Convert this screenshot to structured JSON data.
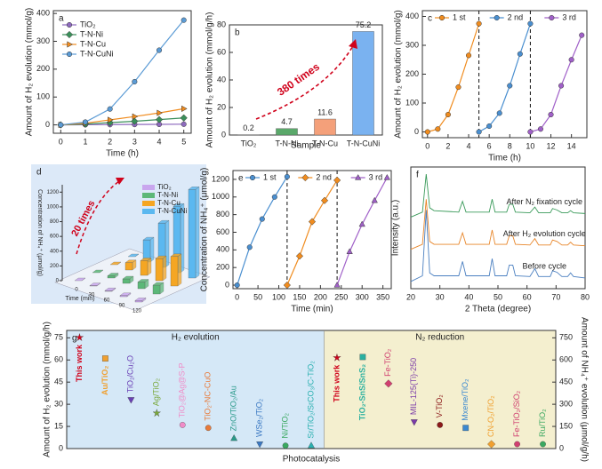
{
  "chart_data": [
    {
      "panel": "a",
      "type": "line",
      "xlabel": "Time (h)",
      "ylabel": "Amount of H₂ evolution (mmol/g)",
      "xlim": [
        -0.3,
        5.3
      ],
      "xticks": [
        0,
        1,
        2,
        3,
        4,
        5
      ],
      "ylim": [
        -30,
        410
      ],
      "yticks": [
        0,
        100,
        200,
        300,
        400
      ],
      "legend": "upper left",
      "series": [
        {
          "name": "TiO₂",
          "color": "#8e6bbf",
          "marker": "circle",
          "x": [
            0,
            1,
            2,
            3,
            4,
            5
          ],
          "values": [
            0,
            0.5,
            1,
            1.5,
            2,
            2.5
          ]
        },
        {
          "name": "T-N-Ni",
          "color": "#3a8f5a",
          "marker": "diamond",
          "x": [
            0,
            1,
            2,
            3,
            4,
            5
          ],
          "values": [
            0,
            3,
            8,
            13,
            19,
            25
          ]
        },
        {
          "name": "T-N-Cu",
          "color": "#f08c1f",
          "marker": "triangle-right",
          "x": [
            0,
            1,
            2,
            3,
            4,
            5
          ],
          "values": [
            0,
            6,
            18,
            30,
            43,
            58
          ]
        },
        {
          "name": "T-N-CuNi",
          "color": "#5b9bd5",
          "marker": "circle",
          "x": [
            0,
            1,
            2,
            3,
            4,
            5
          ],
          "values": [
            0,
            10,
            57,
            155,
            268,
            376
          ]
        }
      ]
    },
    {
      "panel": "b",
      "type": "bar",
      "xlabel": "Sample",
      "ylabel": "Amount of H₂ evolution (mmol/g/h)",
      "categories": [
        "TiO₂",
        "T-N-Ni",
        "T-N-Cu",
        "T-N-CuNi"
      ],
      "values": [
        0.2,
        4.7,
        11.6,
        75.2
      ],
      "colors": [
        "#b0b0b0",
        "#5aa86a",
        "#f4a07a",
        "#7ab2f0"
      ],
      "ylim": [
        0,
        80
      ],
      "yticks": [
        0,
        20,
        40,
        60,
        80
      ],
      "annotation": "380 times"
    },
    {
      "panel": "c",
      "type": "line",
      "xlabel": "Time (h)",
      "ylabel": "Amount of H₂ evolution (mmol/g)",
      "xlim": [
        -0.5,
        15.5
      ],
      "xticks": [
        0,
        2,
        4,
        6,
        8,
        10,
        12,
        14
      ],
      "ylim": [
        -20,
        420
      ],
      "yticks": [
        0,
        100,
        200,
        300,
        400
      ],
      "legend": "upper center",
      "dividers": [
        5,
        10
      ],
      "series": [
        {
          "name": "1 st",
          "color": "#f08c1f",
          "marker": "circle",
          "x": [
            0,
            1,
            2,
            3,
            4,
            5
          ],
          "values": [
            0,
            10,
            60,
            155,
            265,
            375
          ]
        },
        {
          "name": "2 nd",
          "color": "#4a8fd0",
          "marker": "circle",
          "x": [
            5,
            6,
            7,
            8,
            9,
            10
          ],
          "values": [
            0,
            20,
            65,
            160,
            270,
            375
          ]
        },
        {
          "name": "3 rd",
          "color": "#a060c8",
          "marker": "circle",
          "x": [
            10,
            11,
            12,
            13,
            14,
            15
          ],
          "values": [
            0,
            10,
            60,
            160,
            250,
            335
          ]
        }
      ]
    },
    {
      "panel": "d",
      "type": "bar3d",
      "xlabel": "Time (min)",
      "zlabel": "Concentration of NH₄⁺ (μmol/g)",
      "annotation": "20 times",
      "categories": [
        "0",
        "30",
        "60",
        "90",
        "120"
      ],
      "zlim": [
        0,
        1300
      ],
      "zticks": [
        0,
        200,
        400,
        600,
        800,
        1000,
        1200
      ],
      "legend": "upper right",
      "series": [
        {
          "name": "TiO₂",
          "color": "#c9a6ee",
          "values": [
            0,
            5,
            10,
            15,
            20
          ]
        },
        {
          "name": "T-N-Ni",
          "color": "#5cb878",
          "values": [
            0,
            30,
            60,
            90,
            120
          ]
        },
        {
          "name": "T-N-Cu",
          "color": "#f5a623",
          "values": [
            0,
            100,
            200,
            300,
            400
          ]
        },
        {
          "name": "T-N-CuNi",
          "color": "#5bb8f0",
          "values": [
            0,
            300,
            600,
            900,
            1200
          ]
        }
      ]
    },
    {
      "panel": "e",
      "type": "line",
      "xlabel": "Time (min)",
      "ylabel": "Concentration of NH₄⁺ (μmol/g)",
      "xlim": [
        -10,
        370
      ],
      "xticks": [
        0,
        50,
        100,
        150,
        200,
        250,
        300,
        350
      ],
      "ylim": [
        -40,
        1300
      ],
      "yticks": [
        0,
        200,
        400,
        600,
        800,
        1000,
        1200
      ],
      "legend": "upper center",
      "dividers": [
        120,
        240
      ],
      "series": [
        {
          "name": "1 st",
          "color": "#4a8fd0",
          "marker": "circle",
          "x": [
            0,
            30,
            60,
            90,
            120
          ],
          "values": [
            0,
            430,
            750,
            1000,
            1230
          ]
        },
        {
          "name": "2 nd",
          "color": "#f08c1f",
          "marker": "diamond",
          "x": [
            120,
            150,
            180,
            210,
            240
          ],
          "values": [
            0,
            330,
            720,
            960,
            1190
          ]
        },
        {
          "name": "3 rd",
          "color": "#a060c8",
          "marker": "triangle",
          "x": [
            240,
            270,
            300,
            330,
            360
          ],
          "values": [
            0,
            380,
            690,
            960,
            1220
          ]
        }
      ]
    },
    {
      "panel": "f",
      "type": "xrd",
      "xlabel": "2 Theta (degree)",
      "ylabel": "Intensity (a.u.)",
      "xlim": [
        20,
        80
      ],
      "xticks": [
        20,
        30,
        40,
        50,
        60,
        70,
        80
      ],
      "ylim": [
        0,
        17
      ],
      "x": [
        20,
        24,
        25.3,
        26.5,
        28,
        36.5,
        37.8,
        39,
        47,
        48,
        49,
        53,
        53.9,
        55.1,
        56,
        61,
        62.7,
        64,
        68,
        68.8,
        70.3,
        72,
        74,
        75,
        76,
        80
      ],
      "series": [
        {
          "name": "Before cycle",
          "color": "#4a7fc0",
          "values": [
            1,
            1.8,
            11,
            2.2,
            1.8,
            1.8,
            3.8,
            1.8,
            1.8,
            4.2,
            1.8,
            1.8,
            3.3,
            3.3,
            1.8,
            1.7,
            2.8,
            1.7,
            1.7,
            2.5,
            2.3,
            1.7,
            1.7,
            2.2,
            1.7,
            1.5
          ]
        },
        {
          "name": "After H₂ evolution cycle",
          "color": "#e8862a",
          "values": [
            5.5,
            6.2,
            12.5,
            6.6,
            6.2,
            6.2,
            7.8,
            6.2,
            6.2,
            8.2,
            6.2,
            6.2,
            7.4,
            7.4,
            6.2,
            6.1,
            7,
            6.1,
            6.1,
            6.8,
            6.6,
            6.1,
            6.1,
            6.5,
            6.1,
            6
          ]
        },
        {
          "name": "After N₂ fixation cycle",
          "color": "#3a9a5a",
          "values": [
            10,
            10.7,
            16,
            11.3,
            10.9,
            10.7,
            12.2,
            10.7,
            10.7,
            12.5,
            10.7,
            10.7,
            11.8,
            11.8,
            10.7,
            10.6,
            11.4,
            10.6,
            10.6,
            11.2,
            11,
            10.6,
            10.6,
            10.9,
            10.6,
            10.5
          ]
        }
      ]
    },
    {
      "panel": "g",
      "type": "compare",
      "xlabel": "Photocatalysis",
      "ylabel": "Amount of H₂ evolution (mmol/g/h)",
      "y2label": "Amount of NH₄⁺ evolution (μmol/g/h)",
      "ylim": [
        0,
        80
      ],
      "yticks": [
        0,
        15,
        30,
        45,
        60,
        75
      ],
      "y2lim": [
        0,
        800
      ],
      "y2ticks": [
        0,
        150,
        300,
        450,
        600,
        750
      ],
      "series": [
        {
          "name": "H₂ evolution",
          "axis": "y",
          "color": "#d5e8f7",
          "labels": [
            "This work",
            "Au/TiO₂",
            "TiO₂/Cu₂O",
            "Ag/TiO₂",
            "TiO₂@Ag@S-P",
            "TiO₂-NC-CuO",
            "ZnO/TiO₂/Au",
            "WSe₂/TiO₂",
            "Ni/TiO₂",
            "Sr/TiO₂/SrCO₃/C-TiO₂"
          ],
          "values": [
            75.2,
            61,
            33,
            24,
            16,
            14,
            7,
            3,
            2,
            2
          ],
          "colors": [
            "#d0021b",
            "#f0a030",
            "#6a3fb5",
            "#7aa83c",
            "#f08cc8",
            "#e87a3a",
            "#2a9a8a",
            "#3a78c2",
            "#3aa860",
            "#2ab0b0"
          ],
          "markers": [
            "star",
            "square",
            "triangle-down",
            "star",
            "circle",
            "circle",
            "triangle",
            "triangle-down",
            "circle",
            "triangle"
          ]
        },
        {
          "name": "N₂ reduction",
          "axis": "y2",
          "color": "#f4efcf",
          "labels": [
            "This work",
            "TiO₂-SnS/SnS₂",
            "Fe-TiO₂",
            "MIL-125(Ti)-250",
            "V-TiO₂",
            "Mxene/TiO₂",
            "CN-O₂/TiO₂",
            "Fe-TiO₂/SiO₂",
            "Ru/TiO₂"
          ],
          "values": [
            615,
            620,
            440,
            180,
            160,
            140,
            30,
            30,
            30
          ],
          "colors": [
            "#d0021b",
            "#2ab0a0",
            "#d04070",
            "#7a3aa8",
            "#8b1a1a",
            "#3a88d0",
            "#f0a030",
            "#d04070",
            "#3aa860"
          ],
          "markers": [
            "star",
            "square",
            "diamond",
            "triangle-down",
            "circle",
            "square",
            "diamond",
            "circle",
            "circle"
          ]
        }
      ]
    }
  ]
}
